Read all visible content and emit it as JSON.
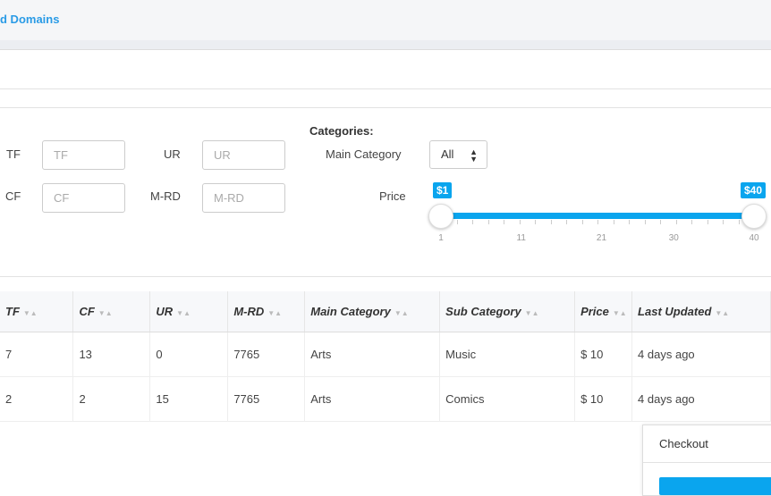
{
  "tab": {
    "label": "d Domains"
  },
  "filters": {
    "tf": {
      "label": "TF",
      "placeholder": "TF"
    },
    "cf": {
      "label": "CF",
      "placeholder": "CF"
    },
    "ur": {
      "label": "UR",
      "placeholder": "UR"
    },
    "mrd": {
      "label": "M-RD",
      "placeholder": "M-RD"
    },
    "categories_heading": "Categories:",
    "main_category": {
      "label": "Main Category",
      "value": "All"
    },
    "price": {
      "label": "Price",
      "min_label": "$1",
      "max_label": "$40",
      "min": 1,
      "max": 40,
      "range_low": 1,
      "range_high": 40,
      "ticks": [
        "1",
        "11",
        "21",
        "30",
        "40"
      ]
    }
  },
  "table": {
    "columns": [
      "TF",
      "CF",
      "UR",
      "M-RD",
      "Main Category",
      "Sub Category",
      "Price",
      "Last Updated"
    ],
    "rows": [
      [
        "7",
        "13",
        "0",
        "7765",
        "Arts",
        "Music",
        "$ 10",
        "4 days ago"
      ],
      [
        "2",
        "2",
        "15",
        "7765",
        "Arts",
        "Comics",
        "$ 10",
        "4 days ago"
      ]
    ]
  },
  "checkout": {
    "title": "Checkout"
  },
  "colors": {
    "accent": "#0aa5ee",
    "tab_text": "#2a9be6"
  }
}
